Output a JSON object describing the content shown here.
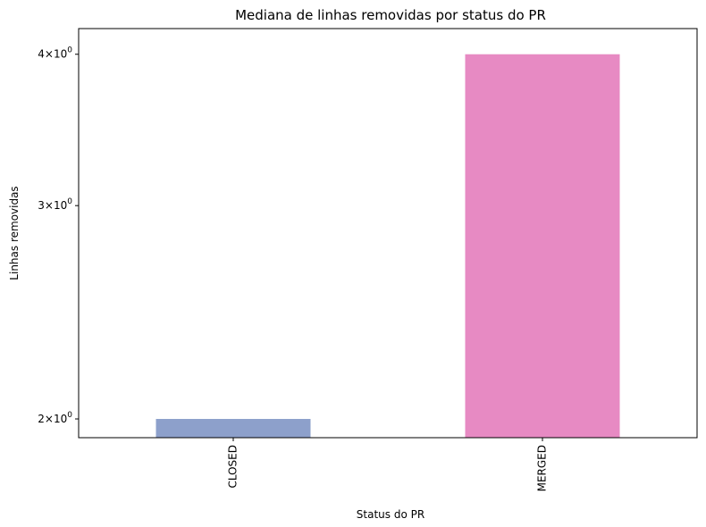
{
  "chart_data": {
    "type": "bar",
    "title": "Mediana de linhas removidas por status do PR",
    "xlabel": "Status do PR",
    "ylabel": "Linhas removidas",
    "categories": [
      "CLOSED",
      "MERGED"
    ],
    "values": [
      2,
      4
    ],
    "colors": [
      "#8da0cb",
      "#e78ac3"
    ],
    "yscale": "log",
    "ylim": [
      1.93,
      4.2
    ],
    "yticks": [
      {
        "value": 2,
        "base": "2",
        "sep": "×",
        "mant": "10",
        "exp": "0"
      },
      {
        "value": 3,
        "base": "3",
        "sep": "×",
        "mant": "10",
        "exp": "0"
      },
      {
        "value": 4,
        "base": "4",
        "sep": "×",
        "mant": "10",
        "exp": "0"
      }
    ],
    "grid": false,
    "legend": "none"
  }
}
